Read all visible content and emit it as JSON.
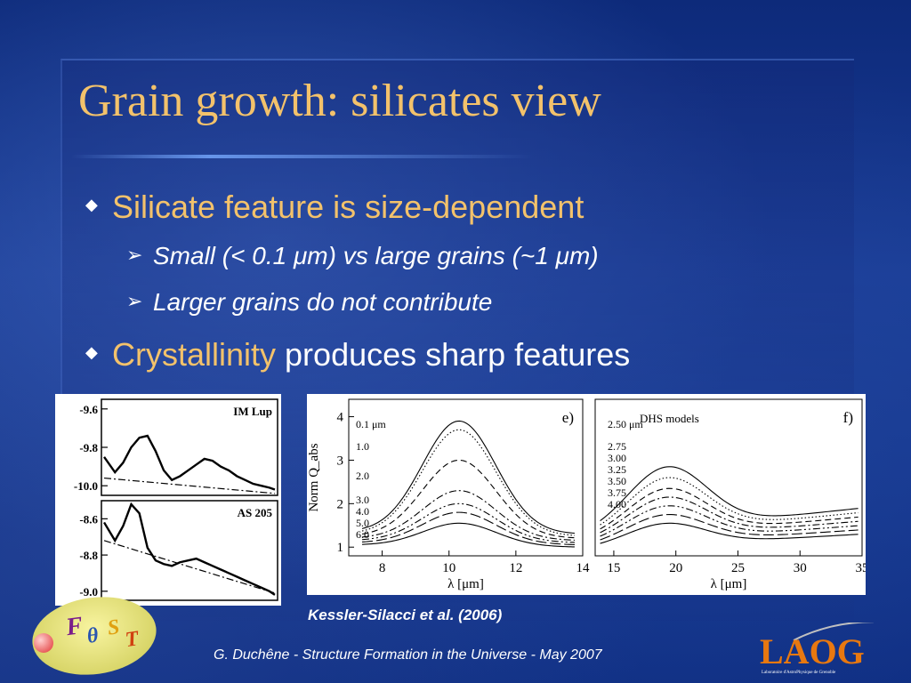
{
  "slide": {
    "title": "Grain growth: silicates view",
    "bullets": [
      {
        "text": "Silicate feature is size-dependent"
      },
      {
        "sub": "Small (< 0.1 μm) vs large grains (~1 μm)"
      },
      {
        "sub": "Larger grains do not contribute"
      },
      {
        "highlight": "Crystallinity",
        "rest": " produces sharp features"
      }
    ],
    "citation": "Kessler-Silacci et al. (2006)",
    "footer": "G. Duchêne - Structure Formation in the Universe - May 2007",
    "logo_left": {
      "text": "FOST",
      "letters": [
        "F",
        "θ",
        "S",
        "T"
      ]
    },
    "logo_right": {
      "text": "LAOG",
      "tagline": "Laboratoire d'AstroPhysique de Grenoble"
    }
  },
  "colors": {
    "title": "#f3c26b",
    "text": "#ffffff",
    "background": "#13348a"
  },
  "chart_data": [
    {
      "type": "line",
      "panel": "left-top",
      "label": "IM Lup",
      "ytick_labels": [
        "-9.6",
        "-9.8",
        "-10.0"
      ],
      "ylim": [
        -10.05,
        -9.55
      ],
      "xlim": [
        7.5,
        14
      ],
      "series": [
        {
          "style": "solid",
          "x": [
            7.6,
            8.0,
            8.3,
            8.6,
            8.9,
            9.2,
            9.5,
            9.8,
            10.1,
            10.4,
            10.7,
            11.0,
            11.3,
            11.6,
            11.9,
            12.2,
            12.5,
            12.8,
            13.1,
            13.4,
            13.7,
            13.9
          ],
          "y": [
            -9.85,
            -9.93,
            -9.88,
            -9.8,
            -9.75,
            -9.74,
            -9.82,
            -9.92,
            -9.97,
            -9.95,
            -9.92,
            -9.89,
            -9.86,
            -9.87,
            -9.9,
            -9.92,
            -9.95,
            -9.97,
            -9.99,
            -10.0,
            -10.01,
            -10.02
          ]
        },
        {
          "style": "dash-dot",
          "x": [
            7.6,
            13.9
          ],
          "y": [
            -9.96,
            -10.04
          ]
        }
      ]
    },
    {
      "type": "line",
      "panel": "left-bottom",
      "label": "AS 205",
      "ytick_labels": [
        "-8.6",
        "-8.8",
        "-9.0"
      ],
      "ylim": [
        -9.05,
        -8.5
      ],
      "xlim": [
        7.5,
        14
      ],
      "series": [
        {
          "style": "solid",
          "x": [
            7.6,
            8.0,
            8.3,
            8.6,
            8.9,
            9.2,
            9.5,
            9.8,
            10.1,
            10.4,
            10.7,
            11.0,
            11.3,
            11.6,
            11.9,
            12.2,
            12.5,
            12.8,
            13.1,
            13.4,
            13.7,
            13.9
          ],
          "y": [
            -8.62,
            -8.72,
            -8.64,
            -8.52,
            -8.57,
            -8.76,
            -8.83,
            -8.85,
            -8.86,
            -8.84,
            -8.83,
            -8.82,
            -8.84,
            -8.86,
            -8.88,
            -8.9,
            -8.92,
            -8.94,
            -8.96,
            -8.98,
            -9.0,
            -9.02
          ]
        },
        {
          "style": "dash-dot",
          "x": [
            7.6,
            13.9
          ],
          "y": [
            -8.72,
            -9.01
          ]
        }
      ]
    },
    {
      "type": "line",
      "panel": "e)",
      "xlabel": "λ [μm]",
      "ylabel": "Norm Q_abs",
      "xlim": [
        7,
        14
      ],
      "ylim": [
        0.8,
        4.4
      ],
      "xticks": [
        8,
        10,
        12,
        14
      ],
      "yticks": [
        1,
        2,
        3,
        4
      ],
      "legend_header": "0.1 μm",
      "series": [
        {
          "name": "0.1",
          "style": "solid",
          "peak": 3.9,
          "base": 1.35,
          "right": 1.3
        },
        {
          "name": "1.0",
          "style": "dotted",
          "peak": 3.7,
          "base": 1.3,
          "right": 1.25
        },
        {
          "name": "2.0",
          "style": "dashed",
          "peak": 3.0,
          "base": 1.25,
          "right": 1.2
        },
        {
          "name": "3.0",
          "style": "dash-dot",
          "peak": 2.3,
          "base": 1.2,
          "right": 1.15
        },
        {
          "name": "4.0",
          "style": "dash-dot-dot",
          "peak": 2.0,
          "base": 1.15,
          "right": 1.1
        },
        {
          "name": "5.0",
          "style": "long-dash",
          "peak": 1.8,
          "base": 1.1,
          "right": 1.05
        },
        {
          "name": "6.0",
          "style": "solid",
          "peak": 1.55,
          "base": 1.05,
          "right": 1.0
        }
      ]
    },
    {
      "type": "line",
      "panel": "f)",
      "title": "DHS models",
      "xlabel": "λ [μm]",
      "xlim": [
        13.5,
        35
      ],
      "ylim": [
        0.8,
        4.4
      ],
      "xticks": [
        15,
        20,
        25,
        30,
        35
      ],
      "legend_header": "2.50 μm",
      "series": [
        {
          "name": "2.50",
          "style": "solid",
          "peak": 2.85,
          "base": 1.25,
          "right": 1.9
        },
        {
          "name": "2.75",
          "style": "dotted",
          "peak": 2.6,
          "base": 1.2,
          "right": 1.8
        },
        {
          "name": "3.00",
          "style": "dashed",
          "peak": 2.35,
          "base": 1.15,
          "right": 1.7
        },
        {
          "name": "3.25",
          "style": "dash-dot",
          "peak": 2.15,
          "base": 1.1,
          "right": 1.6
        },
        {
          "name": "3.50",
          "style": "dash-dot-dot",
          "peak": 1.95,
          "base": 1.05,
          "right": 1.5
        },
        {
          "name": "3.75",
          "style": "long-dash",
          "peak": 1.75,
          "base": 1.0,
          "right": 1.4
        },
        {
          "name": "4.00",
          "style": "solid",
          "peak": 1.55,
          "base": 0.95,
          "right": 1.3
        }
      ]
    }
  ]
}
